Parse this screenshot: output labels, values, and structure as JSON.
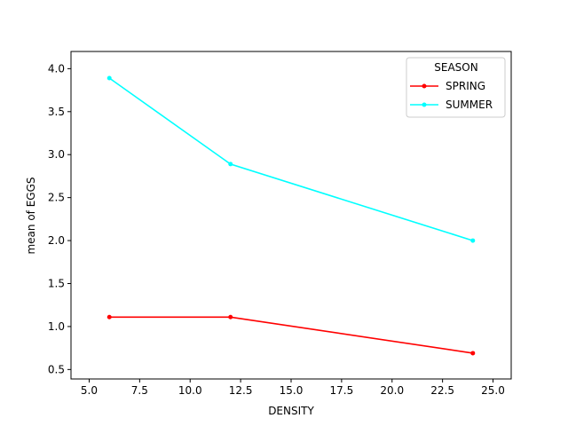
{
  "chart_data": {
    "type": "line",
    "title": "",
    "xlabel": "DENSITY",
    "ylabel": "mean of EGGS",
    "xlim": [
      4.1,
      25.9
    ],
    "ylim": [
      0.39,
      4.2
    ],
    "x": [
      6,
      12,
      24
    ],
    "xticks": [
      5.0,
      7.5,
      10.0,
      12.5,
      15.0,
      17.5,
      20.0,
      22.5,
      25.0
    ],
    "xtick_labels": [
      "5.0",
      "7.5",
      "10.0",
      "12.5",
      "15.0",
      "17.5",
      "20.0",
      "22.5",
      "25.0"
    ],
    "yticks": [
      0.5,
      1.0,
      1.5,
      2.0,
      2.5,
      3.0,
      3.5,
      4.0
    ],
    "ytick_labels": [
      "0.5",
      "1.0",
      "1.5",
      "2.0",
      "2.5",
      "3.0",
      "3.5",
      "4.0"
    ],
    "grid": false,
    "legend": {
      "title": "SEASON",
      "placement": "upper-right"
    },
    "series": [
      {
        "name": "SPRING",
        "color": "#ff0000",
        "values": [
          1.11,
          1.11,
          0.69
        ]
      },
      {
        "name": "SUMMER",
        "color": "#00ffff",
        "values": [
          3.89,
          2.89,
          2.0
        ]
      }
    ]
  }
}
